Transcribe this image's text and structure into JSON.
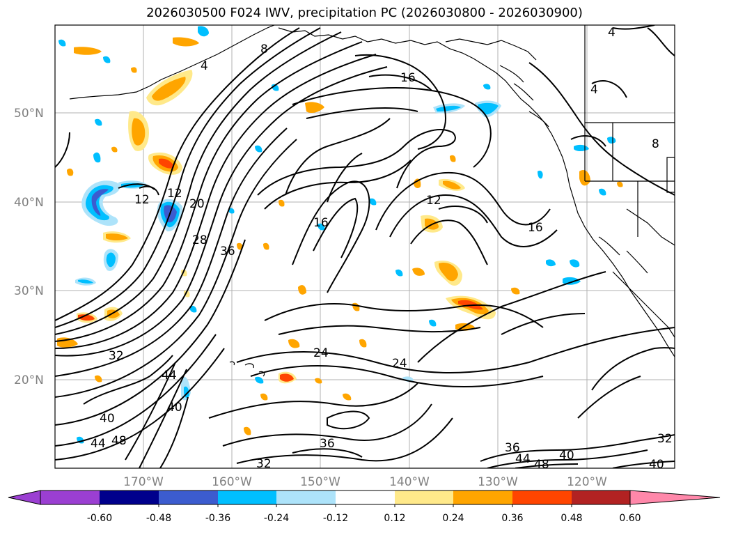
{
  "title": "2026030500 F024 IWV, precipitation PC (2026030800 - 2026030900)",
  "map": {
    "lat_labels": [
      "50°N",
      "40°N",
      "30°N",
      "20°N"
    ],
    "lon_labels": [
      "170°W",
      "160°W",
      "150°W",
      "140°W",
      "130°W",
      "120°W"
    ],
    "contour_labels": [
      "4",
      "8",
      "4",
      "16",
      "12",
      "20",
      "28",
      "36",
      "12",
      "16",
      "16",
      "12",
      "4",
      "8",
      "32",
      "44",
      "40",
      "40",
      "44",
      "48",
      "24",
      "24",
      "36",
      "32",
      "36",
      "44",
      "48",
      "40",
      "32",
      "40"
    ]
  },
  "colorbar": {
    "ticks": [
      "-0.60",
      "-0.48",
      "-0.36",
      "-0.24",
      "-0.12",
      "0.12",
      "0.24",
      "0.36",
      "0.48",
      "0.60"
    ],
    "colors": {
      "under": "#9b3fd2",
      "bins": [
        "#00008c",
        "#3c5ccf",
        "#00bfff",
        "#ade3fa",
        "#ffffff",
        "#ffe98a",
        "#ffa500",
        "#ff4500",
        "#b22222"
      ],
      "over": "#ff88aa"
    }
  }
}
